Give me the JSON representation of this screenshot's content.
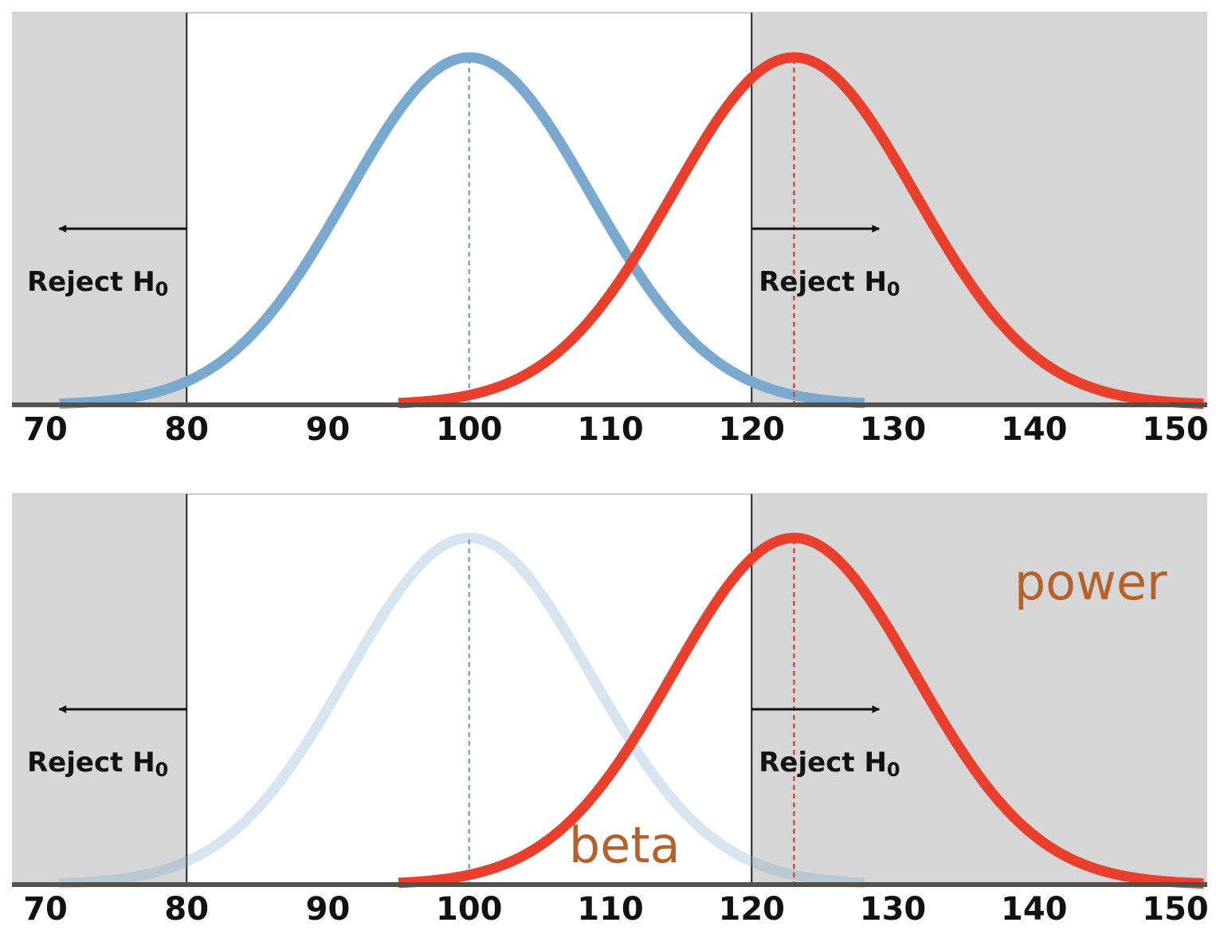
{
  "chart_data": [
    {
      "type": "line",
      "xlim": [
        70,
        150
      ],
      "xticks": [
        70,
        80,
        90,
        100,
        110,
        120,
        130,
        140,
        150
      ],
      "critical_values": [
        80,
        120
      ],
      "reject_regions": [
        {
          "side": "left",
          "label": "Reject H",
          "subscript": "0"
        },
        {
          "side": "right",
          "label": "Reject H",
          "subscript": "0"
        }
      ],
      "series": [
        {
          "mean": 100,
          "sd": 8.6,
          "x_range": [
            71,
            128
          ],
          "color": "#7aa9cf",
          "opacity": 1.0
        },
        {
          "mean": 123,
          "sd": 8.6,
          "x_range": [
            95,
            152
          ],
          "color": "#e8402c",
          "opacity": 1.0
        }
      ],
      "annotations": []
    },
    {
      "type": "line",
      "xlim": [
        70,
        150
      ],
      "xticks": [
        70,
        80,
        90,
        100,
        110,
        120,
        130,
        140,
        150
      ],
      "critical_values": [
        80,
        120
      ],
      "reject_regions": [
        {
          "side": "left",
          "label": "Reject H",
          "subscript": "0"
        },
        {
          "side": "right",
          "label": "Reject H",
          "subscript": "0"
        }
      ],
      "series": [
        {
          "mean": 100,
          "sd": 8.6,
          "x_range": [
            71,
            128
          ],
          "color": "#7aa9cf",
          "opacity": 0.3
        },
        {
          "mean": 123,
          "sd": 8.6,
          "x_range": [
            95,
            152
          ],
          "color": "#e8402c",
          "opacity": 1.0
        }
      ],
      "annotations": [
        {
          "text": "beta",
          "x": 111,
          "color": "#b5612b"
        },
        {
          "text": "power",
          "x": 144,
          "color": "#b5612b"
        }
      ]
    }
  ],
  "colors": {
    "shade": "#d6d6d6",
    "axis": "#55504a"
  }
}
